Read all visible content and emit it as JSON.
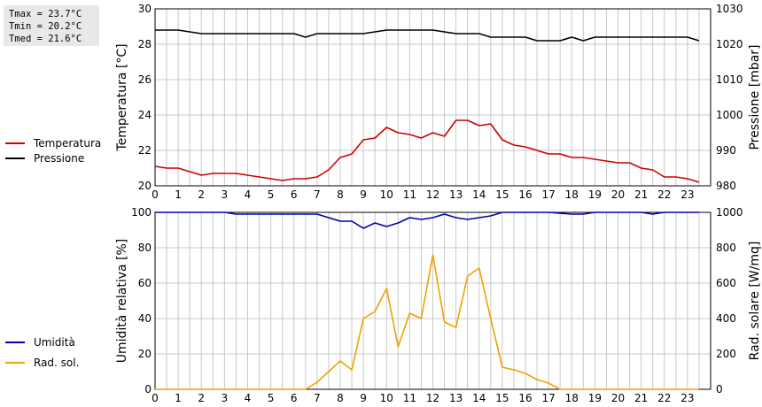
{
  "stats": {
    "tmax": "Tmax = 23.7°C",
    "tmin": "Tmin = 20.2°C",
    "tmed": "Tmed = 21.6°C"
  },
  "colors": {
    "temperatura": "#cc0000",
    "pressione": "#000000",
    "umidita": "#0000aa",
    "rad_sol": "#f0a000",
    "grid": "#c8c8c8"
  },
  "chart_data": [
    {
      "type": "line",
      "title": "",
      "xlabel": "",
      "ylabel": "Temperatura [°C]",
      "y2label": "Pressione [mbar]",
      "xlim": [
        0,
        24
      ],
      "ylim": [
        20,
        30
      ],
      "y2lim": [
        980,
        1030
      ],
      "x_ticks": [
        0,
        1,
        2,
        3,
        4,
        5,
        6,
        7,
        8,
        9,
        10,
        11,
        12,
        13,
        14,
        15,
        16,
        17,
        18,
        19,
        20,
        21,
        22,
        23
      ],
      "y_ticks": [
        20,
        22,
        24,
        26,
        28,
        30
      ],
      "y2_ticks": [
        980,
        990,
        1000,
        1010,
        1020,
        1030
      ],
      "grid": true,
      "series": [
        {
          "name": "Temperatura",
          "axis": "left",
          "x": [
            0,
            0.5,
            1,
            1.5,
            2,
            2.5,
            3,
            3.5,
            4,
            4.5,
            5,
            5.5,
            6,
            6.5,
            7,
            7.5,
            8,
            8.5,
            9,
            9.5,
            10,
            10.5,
            11,
            11.5,
            12,
            12.5,
            13,
            13.5,
            14,
            14.5,
            15,
            15.5,
            16,
            16.5,
            17,
            17.5,
            18,
            18.5,
            19,
            19.5,
            20,
            20.5,
            21,
            21.5,
            22,
            22.5,
            23,
            23.5
          ],
          "y": [
            21.1,
            21.0,
            21.0,
            20.8,
            20.6,
            20.7,
            20.7,
            20.7,
            20.6,
            20.5,
            20.4,
            20.3,
            20.4,
            20.4,
            20.5,
            20.9,
            21.6,
            21.8,
            22.6,
            22.7,
            23.3,
            23.0,
            22.9,
            22.7,
            23.0,
            22.8,
            23.7,
            23.7,
            23.4,
            23.5,
            22.6,
            22.3,
            22.2,
            22.0,
            21.8,
            21.8,
            21.6,
            21.6,
            21.5,
            21.4,
            21.3,
            21.3,
            21.0,
            20.9,
            20.5,
            20.5,
            20.4,
            20.2
          ]
        },
        {
          "name": "Pressione",
          "axis": "right",
          "x": [
            0,
            1,
            2,
            3,
            4,
            5,
            6,
            6.5,
            7,
            8,
            9,
            10,
            11,
            12,
            13,
            14,
            14.5,
            15,
            16,
            16.5,
            17,
            17.5,
            18,
            18.5,
            19,
            20,
            21,
            22,
            23,
            23.5
          ],
          "y": [
            1024,
            1024,
            1023,
            1023,
            1023,
            1023,
            1023,
            1022,
            1023,
            1023,
            1023,
            1024,
            1024,
            1024,
            1023,
            1023,
            1022,
            1022,
            1022,
            1021,
            1021,
            1021,
            1022,
            1021,
            1022,
            1022,
            1022,
            1022,
            1022,
            1021
          ]
        }
      ]
    },
    {
      "type": "line",
      "title": "",
      "xlabel": "",
      "ylabel": "Umidità relativa [%]",
      "y2label": "Rad. solare [W/mq]",
      "xlim": [
        0,
        24
      ],
      "ylim": [
        0,
        100
      ],
      "y2lim": [
        0,
        1000
      ],
      "x_ticks": [
        0,
        1,
        2,
        3,
        4,
        5,
        6,
        7,
        8,
        9,
        10,
        11,
        12,
        13,
        14,
        15,
        16,
        17,
        18,
        19,
        20,
        21,
        22,
        23
      ],
      "y_ticks": [
        0,
        20,
        40,
        60,
        80,
        100
      ],
      "y2_ticks": [
        0,
        200,
        400,
        600,
        800,
        1000
      ],
      "grid": true,
      "series": [
        {
          "name": "Umidità",
          "axis": "left",
          "x": [
            0,
            1,
            2,
            3,
            3.5,
            4,
            5,
            6,
            6.5,
            7,
            7.5,
            8,
            8.5,
            9,
            9.5,
            10,
            10.5,
            11,
            11.5,
            12,
            12.5,
            13,
            13.5,
            14,
            14.5,
            15,
            16,
            17,
            18,
            18.5,
            19,
            20,
            21,
            21.5,
            22,
            23,
            23.5
          ],
          "y": [
            100,
            100,
            100,
            100,
            99,
            99,
            99,
            99,
            99,
            99,
            97,
            95,
            95,
            91,
            94,
            92,
            94,
            97,
            96,
            97,
            99,
            97,
            96,
            97,
            98,
            100,
            100,
            100,
            99,
            99,
            100,
            100,
            100,
            99,
            100,
            100,
            100
          ]
        },
        {
          "name": "Rad. sol.",
          "axis": "right",
          "x": [
            0,
            0.5,
            1,
            1.5,
            2,
            2.5,
            3,
            3.5,
            4,
            4.5,
            5,
            5.5,
            6,
            6.5,
            7,
            7.5,
            8,
            8.5,
            9,
            9.5,
            10,
            10.5,
            11,
            11.5,
            12,
            12.5,
            13,
            13.5,
            14,
            14.5,
            15,
            15.5,
            16,
            16.5,
            17,
            17.5,
            18,
            18.5,
            19,
            19.5,
            20,
            20.5,
            21,
            21.5,
            22,
            22.5,
            23,
            23.5
          ],
          "y": [
            0,
            0,
            0,
            0,
            0,
            0,
            0,
            0,
            0,
            0,
            0,
            0,
            0,
            0,
            40,
            100,
            160,
            110,
            400,
            440,
            570,
            240,
            430,
            400,
            760,
            380,
            350,
            640,
            685,
            400,
            125,
            110,
            90,
            55,
            35,
            0,
            0,
            0,
            0,
            0,
            0,
            0,
            0,
            0,
            0,
            0,
            0,
            0
          ]
        }
      ]
    }
  ],
  "legend": {
    "top": [
      {
        "label": "Temperatura",
        "color": "#cc0000"
      },
      {
        "label": "Pressione",
        "color": "#000000"
      }
    ],
    "bottom": [
      {
        "label": "Umidità",
        "color": "#0000aa"
      },
      {
        "label": "Rad. sol.",
        "color": "#f0a000"
      }
    ]
  }
}
